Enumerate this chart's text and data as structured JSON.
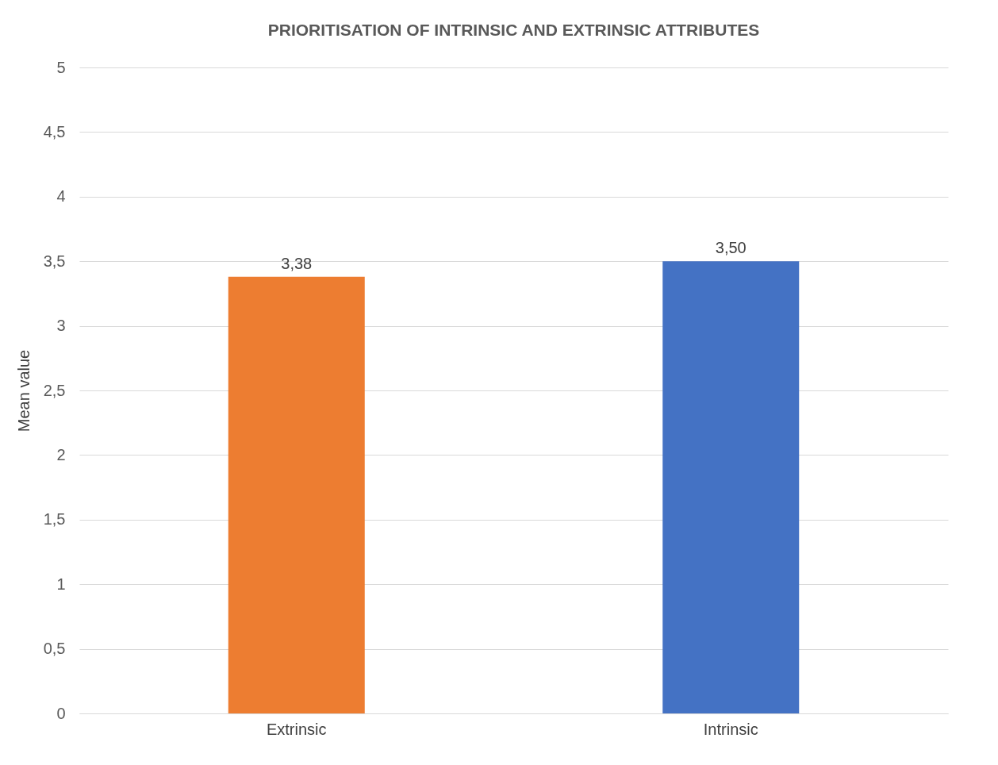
{
  "chart_data": {
    "type": "bar",
    "title": "PRIORITISATION OF INTRINSIC AND EXTRINSIC ATTRIBUTES",
    "ylabel": "Mean value",
    "categories": [
      "Extrinsic",
      "Intrinsic"
    ],
    "values": [
      3.38,
      3.5
    ],
    "colors": [
      "#ed7d31",
      "#4472c4"
    ],
    "value_labels": [
      "3,38",
      "3,50"
    ],
    "ylim": [
      0,
      5
    ],
    "yticks": [
      0,
      {
        "value": 0.5,
        "label": "0,5"
      },
      1,
      {
        "value": 1.5,
        "label": "1,5"
      },
      2,
      {
        "value": 2.5,
        "label": "2,5"
      },
      3,
      {
        "value": 3.5,
        "label": "3,5"
      },
      4,
      {
        "value": 4.5,
        "label": "4,5"
      },
      5
    ],
    "grid": "y"
  }
}
